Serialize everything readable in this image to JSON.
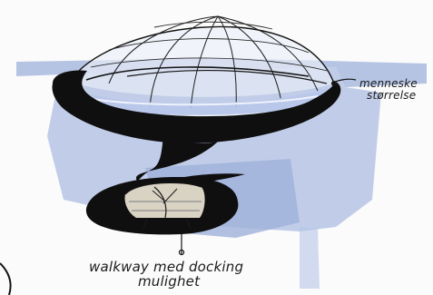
{
  "annotations": {
    "top_right": {
      "line1": "menneske",
      "line2": "størrelse"
    },
    "bottom": {
      "line1": "walkway med docking",
      "line2": "mulighet"
    }
  },
  "colors": {
    "paper": "#fbfbfb",
    "wash_blue": "#9fb2da",
    "wash_blue_light": "#c7d5ef",
    "ink": "#151515",
    "marker_black": "#0f0f0f",
    "tan": "#d6c4a0"
  }
}
